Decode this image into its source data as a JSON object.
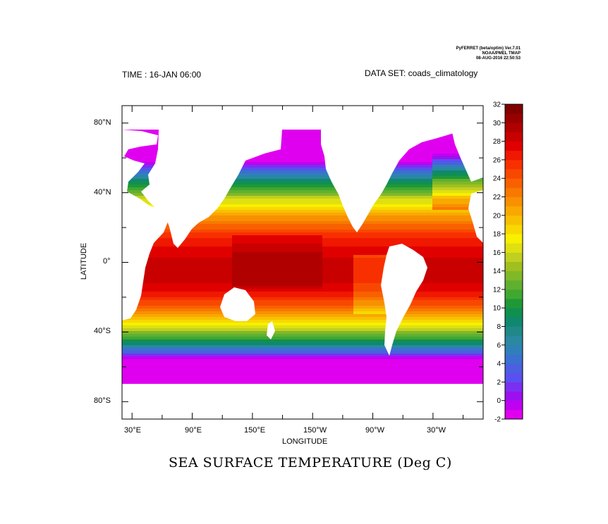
{
  "header": {
    "stamp_line1": "PyFERRET (beta/optim) Ver.7.01",
    "stamp_line2": "NOAA/PMEL TMAP",
    "stamp_line3": "08-AUG-2016 22:50:53",
    "time_label": "TIME : 16-JAN 06:00",
    "dataset_label": "DATA SET: coads_climatology"
  },
  "chart_data": {
    "type": "heatmap",
    "title": "SEA SURFACE TEMPERATURE (Deg C)",
    "xlabel": "LONGITUDE",
    "ylabel": "LATITUDE",
    "x_tick_labels": [
      "30°E",
      "90°E",
      "150°E",
      "150°W",
      "90°W",
      "30°W"
    ],
    "y_tick_labels": [
      "80°N",
      "40°N",
      "0°",
      "40°S",
      "80°S"
    ],
    "colorbar": {
      "min": -2,
      "max": 32,
      "step": 1,
      "tick_labels": [
        "32",
        "30",
        "28",
        "26",
        "24",
        "22",
        "20",
        "18",
        "16",
        "14",
        "12",
        "10",
        "8",
        "6",
        "4",
        "2",
        "0",
        "-2"
      ],
      "colors": [
        "#e000f0",
        "#c000f0",
        "#9c10f0",
        "#7a30f0",
        "#5a50f0",
        "#4a60e0",
        "#3a70d0",
        "#3080b8",
        "#2a88a0",
        "#208888",
        "#108870",
        "#109050",
        "#209838",
        "#40a830",
        "#60b030",
        "#80b828",
        "#a0c020",
        "#c0d020",
        "#e0e010",
        "#f8f000",
        "#f8d800",
        "#f8c000",
        "#f8a800",
        "#f89000",
        "#f87800",
        "#f86000",
        "#f84800",
        "#f83000",
        "#f01800",
        "#e00000",
        "#c80000",
        "#b00000",
        "#980000",
        "#800000"
      ]
    }
  }
}
